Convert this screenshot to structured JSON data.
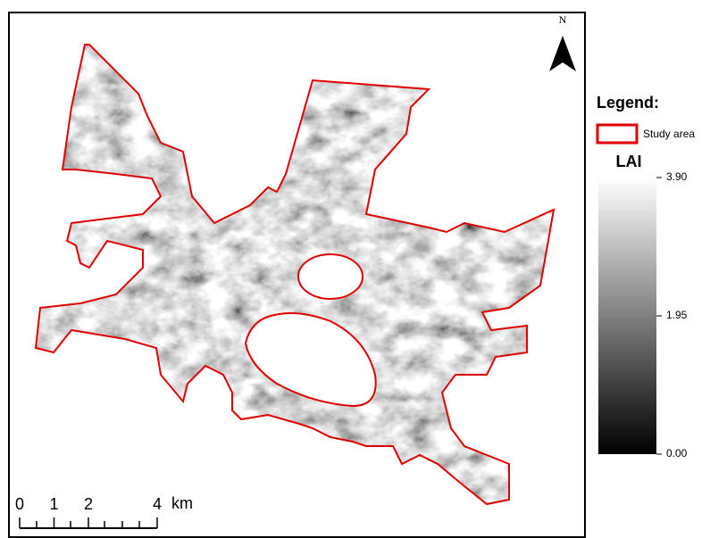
{
  "north_arrow": {
    "label": "N"
  },
  "legend": {
    "title": "Legend:",
    "items": [
      {
        "label": "Study area"
      }
    ],
    "colorbar": {
      "title": "LAI",
      "lim": [
        0,
        3.9
      ],
      "ticks": [
        {
          "value": 3.9,
          "label": "3.90"
        },
        {
          "value": 1.95,
          "label": "1.95"
        },
        {
          "value": 0,
          "label": "0.00"
        }
      ]
    }
  },
  "scale_bar": {
    "ticks": [
      0,
      1,
      2,
      4
    ],
    "unit": "km"
  }
}
